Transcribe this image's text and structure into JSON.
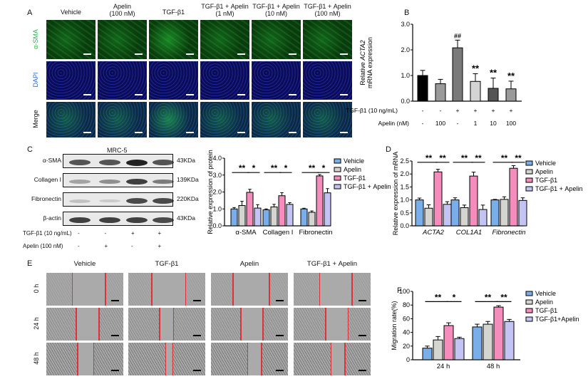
{
  "panel_labels": {
    "a": "A",
    "b": "B",
    "c": "C",
    "d": "D",
    "e": "E",
    "f": "F"
  },
  "panel_a": {
    "columns": [
      "Vehicle",
      "Apelin\n(100 nM)",
      "TGF-β1",
      "TGF-β1 + Apelin\n(1 nM)",
      "TGF-β1 + Apelin\n(10 nM)",
      "TGF-β1 + Apelin\n(100 nM)"
    ],
    "rows": [
      {
        "label": "α-SMA",
        "color": "#2db34a"
      },
      {
        "label": "DAPI",
        "color": "#2a6ad0"
      },
      {
        "label": "Merge",
        "color": "#111111"
      }
    ],
    "stain_colors": {
      "green": "#22c13a",
      "blue": "#2233cc"
    }
  },
  "panel_c_blot": {
    "title": "MRC-5",
    "proteins": [
      {
        "name": "α-SMA",
        "size": "43KDa",
        "intensity": [
          0.75,
          0.75,
          1.0,
          0.75
        ]
      },
      {
        "name": "Collagen I",
        "size": "139KDa",
        "intensity": [
          0.35,
          0.45,
          0.85,
          0.55
        ]
      },
      {
        "name": "Fibronectin",
        "size": "220KDa",
        "intensity": [
          0.2,
          0.15,
          0.8,
          0.8
        ]
      },
      {
        "name": "β-actin",
        "size": "43KDa",
        "intensity": [
          0.85,
          0.85,
          0.85,
          0.8
        ]
      }
    ],
    "conditions": [
      {
        "label": "TGF-β1 (10 ng/mL)",
        "values": [
          "-",
          "-",
          "+",
          "+"
        ]
      },
      {
        "label": "Apelin (100 nM)",
        "values": [
          "-",
          "+",
          "-",
          "+"
        ]
      }
    ]
  },
  "panel_e": {
    "columns": [
      "Vehicle",
      "TGF-β1",
      "Apelin",
      "TGF-β1 + Apelin"
    ],
    "rows": [
      "0 h",
      "24 h",
      "48 h"
    ],
    "line_color": "#e0303a"
  },
  "chart_data": [
    {
      "id": "B",
      "type": "bar",
      "ylabel": "Relative ACTA2\nmRNA expression",
      "ylim": [
        0,
        3
      ],
      "yticks": [
        "0.0",
        "1.0",
        "2.0",
        "3.0"
      ],
      "values": [
        1.0,
        0.68,
        2.08,
        0.77,
        0.5,
        0.48
      ],
      "errors": [
        0.2,
        0.17,
        0.3,
        0.3,
        0.4,
        0.3
      ],
      "colors": [
        "#000000",
        "#9a9a9a",
        "#7a7a7a",
        "#d4d4d4",
        "#555555",
        "#9a9a9a"
      ],
      "annotations": [
        "",
        "",
        "##",
        "**",
        "**",
        "**"
      ],
      "conditions": [
        {
          "label": "TGF-β1 (10 ng/mL)",
          "values": [
            "-",
            "-",
            "+",
            "+",
            "+",
            "+"
          ]
        },
        {
          "label": "Apelin (nM)",
          "values": [
            "-",
            "100",
            "-",
            "1",
            "10",
            "100"
          ]
        }
      ]
    },
    {
      "id": "C",
      "type": "bar",
      "ylabel": "Relative expression of protein",
      "ylim": [
        0,
        4
      ],
      "yticks": [
        "0.0",
        "1.0",
        "2.0",
        "3.0",
        "4.0"
      ],
      "categories": [
        "α-SMA",
        "Collagen I",
        "Fibronectin"
      ],
      "series": [
        {
          "name": "Vehicle",
          "color": "#7aaee8",
          "values": [
            1.0,
            0.95,
            1.0
          ],
          "errors": [
            0.08,
            0.05,
            0.04
          ]
        },
        {
          "name": "Apelin",
          "color": "#d4d4d0",
          "values": [
            1.2,
            1.12,
            0.8
          ],
          "errors": [
            0.25,
            0.15,
            0.08
          ]
        },
        {
          "name": "TGF-β1",
          "color": "#f48cbc",
          "values": [
            1.98,
            1.78,
            2.95
          ],
          "errors": [
            0.18,
            0.18,
            0.08
          ]
        },
        {
          "name": "TGF-β1 + Apelin",
          "color": "#c4c4f4",
          "values": [
            1.05,
            1.27,
            1.95
          ],
          "errors": [
            0.2,
            0.1,
            0.25
          ]
        }
      ],
      "significance": [
        [
          "**",
          "*"
        ],
        [
          "**",
          "*"
        ],
        [
          "**",
          "*"
        ]
      ],
      "sig_level": 3.15,
      "legend": "right"
    },
    {
      "id": "D",
      "type": "bar",
      "ylabel": "Relative expression of mRNA",
      "ylim": [
        0,
        2.5
      ],
      "yticks": [
        "0.0",
        "0.5",
        "1.0",
        "1.5",
        "2.0",
        "2.5"
      ],
      "categories": [
        "ACTA2",
        "COL1A1",
        "Fibronectin"
      ],
      "italic_categories": true,
      "series": [
        {
          "name": "Vehicle",
          "color": "#7aaee8",
          "values": [
            1.0,
            1.0,
            1.0
          ],
          "errors": [
            0.07,
            0.08,
            0.02
          ]
        },
        {
          "name": "Apelin",
          "color": "#d4d4d0",
          "values": [
            0.68,
            0.7,
            1.02
          ],
          "errors": [
            0.13,
            0.1,
            0.1
          ]
        },
        {
          "name": "TGF-β1",
          "color": "#f48cbc",
          "values": [
            2.08,
            1.92,
            2.22
          ],
          "errors": [
            0.1,
            0.15,
            0.1
          ]
        },
        {
          "name": "TGF-β1 + Apelin",
          "color": "#c4c4f4",
          "values": [
            0.83,
            0.63,
            0.98
          ],
          "errors": [
            0.1,
            0.17,
            0.1
          ]
        }
      ],
      "significance": [
        [
          "**",
          "**"
        ],
        [
          "**",
          "**"
        ],
        [
          "**",
          "**"
        ]
      ],
      "sig_level": 2.45,
      "legend": "right"
    },
    {
      "id": "F",
      "type": "bar",
      "ylabel": "Migration rate(%)",
      "ylim": [
        0,
        100
      ],
      "yticks": [
        "0",
        "20",
        "40",
        "60",
        "80",
        "100"
      ],
      "categories": [
        "24 h",
        "48 h"
      ],
      "series": [
        {
          "name": "Vehicle",
          "color": "#7aaee8",
          "values": [
            17,
            48
          ],
          "errors": [
            3,
            4
          ]
        },
        {
          "name": "Apelin",
          "color": "#d4d4d0",
          "values": [
            29,
            52
          ],
          "errors": [
            5,
            4
          ]
        },
        {
          "name": "TGF-β1",
          "color": "#f48cbc",
          "values": [
            50,
            77
          ],
          "errors": [
            4,
            2
          ]
        },
        {
          "name": "TGF-β1+Apelin",
          "color": "#c4c4f4",
          "values": [
            31,
            56
          ],
          "errors": [
            2,
            3
          ]
        }
      ],
      "significance": [
        [
          "**",
          "*"
        ],
        [
          "**",
          "**"
        ]
      ],
      "sig_level": 85,
      "legend": "right"
    }
  ]
}
